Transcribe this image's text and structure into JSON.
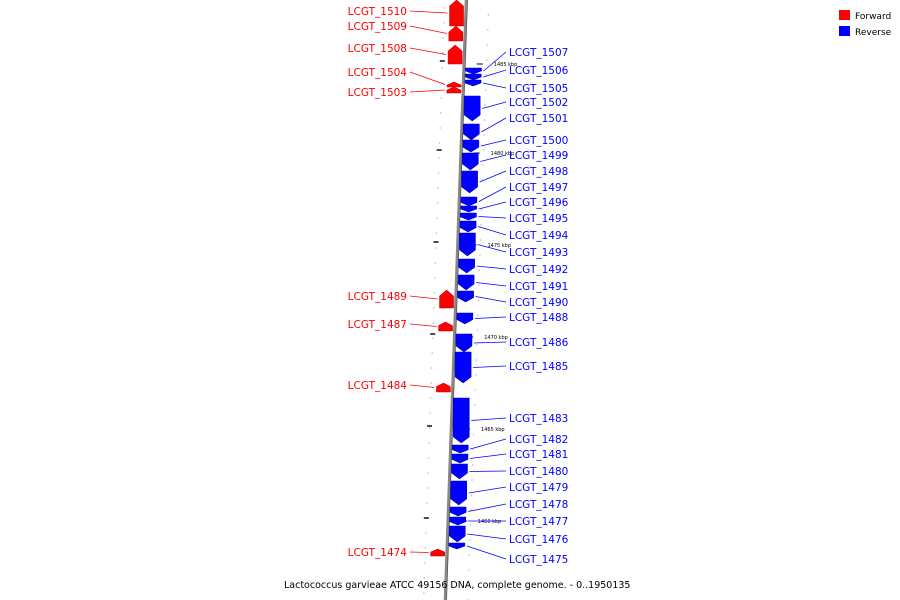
{
  "caption": "Lactococcus garvieae ATCC 49156 DNA, complete genome. - 0..1950135",
  "legend": [
    {
      "label": "Forward",
      "color": "#ff0000"
    },
    {
      "label": "Reverse",
      "color": "#0000ff"
    }
  ],
  "colors": {
    "forward": "#ff0000",
    "reverse": "#0000ff",
    "backbone": "#888888"
  },
  "scale_labels": [
    "1485 kbp",
    "1480 kbp",
    "1475 kbp",
    "1470 kbp",
    "1465 kbp",
    "1460 kbp"
  ],
  "genes": [
    {
      "name": "LCGT_1510",
      "strand": "forward"
    },
    {
      "name": "LCGT_1509",
      "strand": "forward"
    },
    {
      "name": "LCGT_1508",
      "strand": "forward"
    },
    {
      "name": "LCGT_1507",
      "strand": "reverse"
    },
    {
      "name": "LCGT_1506",
      "strand": "reverse"
    },
    {
      "name": "LCGT_1505",
      "strand": "reverse"
    },
    {
      "name": "LCGT_1504",
      "strand": "forward"
    },
    {
      "name": "LCGT_1503",
      "strand": "forward"
    },
    {
      "name": "LCGT_1502",
      "strand": "reverse"
    },
    {
      "name": "LCGT_1501",
      "strand": "reverse"
    },
    {
      "name": "LCGT_1500",
      "strand": "reverse"
    },
    {
      "name": "LCGT_1499",
      "strand": "reverse"
    },
    {
      "name": "LCGT_1498",
      "strand": "reverse"
    },
    {
      "name": "LCGT_1497",
      "strand": "reverse"
    },
    {
      "name": "LCGT_1496",
      "strand": "reverse"
    },
    {
      "name": "LCGT_1495",
      "strand": "reverse"
    },
    {
      "name": "LCGT_1494",
      "strand": "reverse"
    },
    {
      "name": "LCGT_1493",
      "strand": "reverse"
    },
    {
      "name": "LCGT_1492",
      "strand": "reverse"
    },
    {
      "name": "LCGT_1491",
      "strand": "reverse"
    },
    {
      "name": "LCGT_1490",
      "strand": "reverse"
    },
    {
      "name": "LCGT_1489",
      "strand": "forward"
    },
    {
      "name": "LCGT_1488",
      "strand": "reverse"
    },
    {
      "name": "LCGT_1487",
      "strand": "forward"
    },
    {
      "name": "LCGT_1486",
      "strand": "reverse"
    },
    {
      "name": "LCGT_1485",
      "strand": "reverse"
    },
    {
      "name": "LCGT_1484",
      "strand": "forward"
    },
    {
      "name": "LCGT_1483",
      "strand": "reverse"
    },
    {
      "name": "LCGT_1482",
      "strand": "reverse"
    },
    {
      "name": "LCGT_1481",
      "strand": "reverse"
    },
    {
      "name": "LCGT_1480",
      "strand": "reverse"
    },
    {
      "name": "LCGT_1479",
      "strand": "reverse"
    },
    {
      "name": "LCGT_1478",
      "strand": "reverse"
    },
    {
      "name": "LCGT_1477",
      "strand": "reverse"
    },
    {
      "name": "LCGT_1476",
      "strand": "reverse"
    },
    {
      "name": "LCGT_1475",
      "strand": "reverse"
    },
    {
      "name": "LCGT_1474",
      "strand": "forward"
    }
  ]
}
